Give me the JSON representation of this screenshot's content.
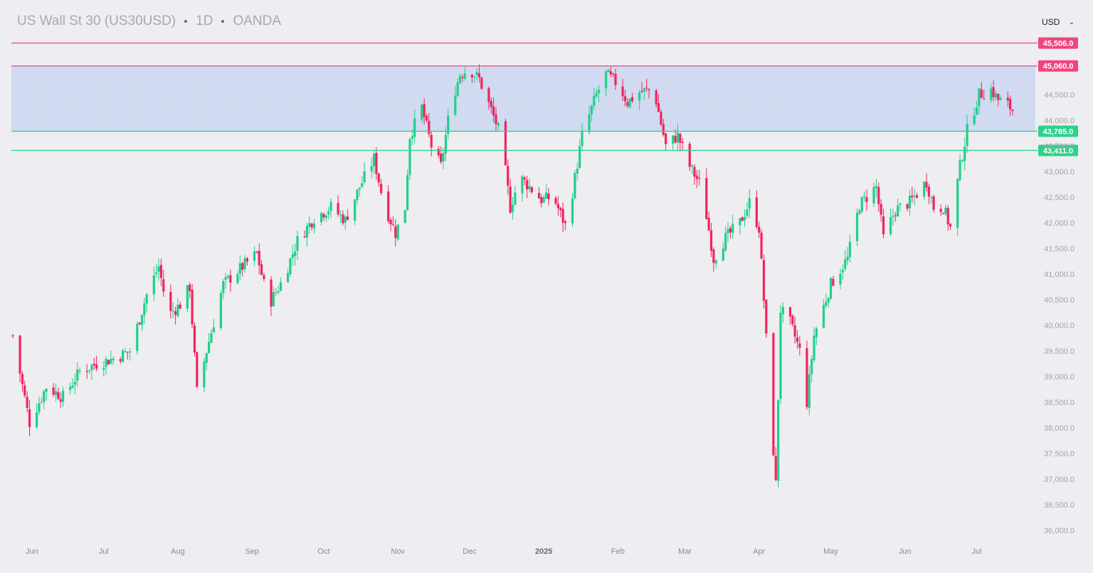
{
  "header": {
    "symbol": "US Wall St 30 (US30USD)",
    "interval": "1D",
    "source": "OANDA"
  },
  "currency_select": {
    "value": "USD"
  },
  "colors": {
    "up": "#1fd08a",
    "down": "#f0245e",
    "resistance": "#f0457e",
    "support": "#2bd38a",
    "zone": "#cdd7f0",
    "background": "#eeedf1"
  },
  "chart_data": {
    "type": "candlestick",
    "y_axis": {
      "min": 36000,
      "max": 45600,
      "ticks": [
        "36,000.0",
        "36,500.0",
        "37,000.0",
        "37,500.0",
        "38,000.0",
        "38,500.0",
        "39,000.0",
        "39,500.0",
        "40,000.0",
        "40,500.0",
        "41,000.0",
        "41,500.0",
        "42,000.0",
        "42,500.0",
        "43,000.0",
        "43,500.0",
        "44,000.0",
        "44,500.0"
      ]
    },
    "x_axis": {
      "start": "2024-05-24",
      "end": "2025-07-16",
      "labels": [
        {
          "label": "Jun",
          "date": "2024-06-01",
          "bold": false
        },
        {
          "label": "Jul",
          "date": "2024-07-01",
          "bold": false
        },
        {
          "label": "Aug",
          "date": "2024-08-01",
          "bold": false
        },
        {
          "label": "Sep",
          "date": "2024-09-01",
          "bold": false
        },
        {
          "label": "Oct",
          "date": "2024-10-01",
          "bold": false
        },
        {
          "label": "Nov",
          "date": "2024-11-01",
          "bold": false
        },
        {
          "label": "Dec",
          "date": "2024-12-01",
          "bold": false
        },
        {
          "label": "2025",
          "date": "2025-01-01",
          "bold": true
        },
        {
          "label": "Feb",
          "date": "2025-02-01",
          "bold": false
        },
        {
          "label": "Mar",
          "date": "2025-03-01",
          "bold": false
        },
        {
          "label": "Apr",
          "date": "2025-04-01",
          "bold": false
        },
        {
          "label": "May",
          "date": "2025-05-01",
          "bold": false
        },
        {
          "label": "Jun",
          "date": "2025-06-01",
          "bold": false
        },
        {
          "label": "Jul",
          "date": "2025-07-01",
          "bold": false
        }
      ]
    },
    "levels": [
      {
        "value": 45506.0,
        "label": "45,506.0",
        "kind": "resistance"
      },
      {
        "value": 45060.0,
        "label": "45,060.0",
        "kind": "resistance"
      },
      {
        "value": 43785.0,
        "label": "43,785.0",
        "kind": "support"
      },
      {
        "value": 43411.0,
        "label": "43,411.0",
        "kind": "support"
      }
    ],
    "zone": {
      "low": 43785.0,
      "high": 45060.0
    },
    "path": [
      [
        "2024-05-24",
        39800
      ],
      [
        "2024-05-31",
        38100
      ],
      [
        "2024-06-07",
        38800
      ],
      [
        "2024-06-14",
        38600
      ],
      [
        "2024-06-21",
        39100
      ],
      [
        "2024-06-28",
        39250
      ],
      [
        "2024-07-05",
        39350
      ],
      [
        "2024-07-12",
        39500
      ],
      [
        "2024-07-19",
        40600
      ],
      [
        "2024-07-24",
        41150
      ],
      [
        "2024-07-28",
        40200
      ],
      [
        "2024-08-02",
        40400
      ],
      [
        "2024-08-06",
        40750
      ],
      [
        "2024-08-09",
        38700
      ],
      [
        "2024-08-13",
        39500
      ],
      [
        "2024-08-20",
        40800
      ],
      [
        "2024-08-27",
        41100
      ],
      [
        "2024-09-03",
        41400
      ],
      [
        "2024-09-08",
        40400
      ],
      [
        "2024-09-14",
        40900
      ],
      [
        "2024-09-20",
        41650
      ],
      [
        "2024-09-27",
        42100
      ],
      [
        "2024-10-04",
        42300
      ],
      [
        "2024-10-10",
        42050
      ],
      [
        "2024-10-16",
        42700
      ],
      [
        "2024-10-22",
        43250
      ],
      [
        "2024-10-26",
        42400
      ],
      [
        "2024-10-31",
        41800
      ],
      [
        "2024-11-04",
        42300
      ],
      [
        "2024-11-06",
        43700
      ],
      [
        "2024-11-11",
        44250
      ],
      [
        "2024-11-15",
        43500
      ],
      [
        "2024-11-19",
        43100
      ],
      [
        "2024-11-23",
        44300
      ],
      [
        "2024-11-27",
        44900
      ],
      [
        "2024-12-01",
        45000
      ],
      [
        "2024-12-05",
        44800
      ],
      [
        "2024-12-10",
        44200
      ],
      [
        "2024-12-14",
        43700
      ],
      [
        "2024-12-18",
        42300
      ],
      [
        "2024-12-22",
        42900
      ],
      [
        "2024-12-26",
        42700
      ],
      [
        "2024-12-31",
        42450
      ],
      [
        "2025-01-05",
        42500
      ],
      [
        "2025-01-10",
        41950
      ],
      [
        "2025-01-13",
        42600
      ],
      [
        "2025-01-17",
        43700
      ],
      [
        "2025-01-23",
        44500
      ],
      [
        "2025-01-27",
        44900
      ],
      [
        "2025-02-01",
        44700
      ],
      [
        "2025-02-05",
        44350
      ],
      [
        "2025-02-10",
        44550
      ],
      [
        "2025-02-16",
        44600
      ],
      [
        "2025-02-21",
        43500
      ],
      [
        "2025-02-26",
        43700
      ],
      [
        "2025-03-03",
        43100
      ],
      [
        "2025-03-08",
        42700
      ],
      [
        "2025-03-13",
        41300
      ],
      [
        "2025-03-18",
        41700
      ],
      [
        "2025-03-24",
        42000
      ],
      [
        "2025-03-28",
        42400
      ],
      [
        "2025-04-01",
        41900
      ],
      [
        "2025-04-03",
        40500
      ],
      [
        "2025-04-06",
        38200
      ],
      [
        "2025-04-08",
        36900
      ],
      [
        "2025-04-10",
        40300
      ],
      [
        "2025-04-14",
        40050
      ],
      [
        "2025-04-18",
        39500
      ],
      [
        "2025-04-21",
        38500
      ],
      [
        "2025-04-24",
        39800
      ],
      [
        "2025-05-01",
        40800
      ],
      [
        "2025-05-08",
        41300
      ],
      [
        "2025-05-13",
        42350
      ],
      [
        "2025-05-16",
        42500
      ],
      [
        "2025-05-20",
        42700
      ],
      [
        "2025-05-23",
        41700
      ],
      [
        "2025-05-28",
        42250
      ],
      [
        "2025-06-03",
        42400
      ],
      [
        "2025-06-10",
        42800
      ],
      [
        "2025-06-13",
        42300
      ],
      [
        "2025-06-17",
        42300
      ],
      [
        "2025-06-20",
        41900
      ],
      [
        "2025-06-24",
        43100
      ],
      [
        "2025-06-27",
        43800
      ],
      [
        "2025-07-02",
        44500
      ],
      [
        "2025-07-07",
        44600
      ],
      [
        "2025-07-10",
        44400
      ],
      [
        "2025-07-14",
        44300
      ],
      [
        "2025-07-16",
        44200
      ]
    ]
  }
}
